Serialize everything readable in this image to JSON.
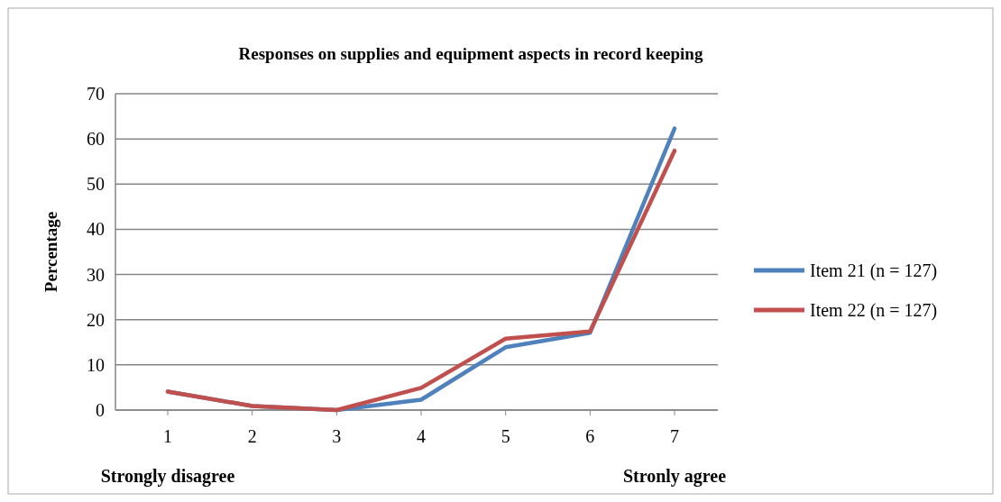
{
  "chart_data": {
    "type": "line",
    "title": "Responses on supplies and equipment  aspects in record keeping",
    "ylabel": "Percentage",
    "categories": [
      "1",
      "2",
      "3",
      "4",
      "5",
      "6",
      "7"
    ],
    "series": [
      {
        "name": "Item 21  (n = 127)",
        "color": "#4f81bd",
        "values": [
          4.1,
          0.9,
          0,
          2.3,
          13.9,
          17.1,
          62.3
        ]
      },
      {
        "name": "Item 22  (n = 127)",
        "color": "#c0504d",
        "values": [
          4.1,
          0.9,
          0,
          4.9,
          15.8,
          17.4,
          57.4
        ]
      }
    ],
    "ylim": [
      0,
      70
    ],
    "yticks": [
      0,
      10,
      20,
      30,
      40,
      50,
      60,
      70
    ],
    "grid": "y",
    "legend": "right",
    "marker": "none",
    "line_style": "solid",
    "annotations": [
      "Strongly disagree",
      "Stronly agree"
    ]
  }
}
